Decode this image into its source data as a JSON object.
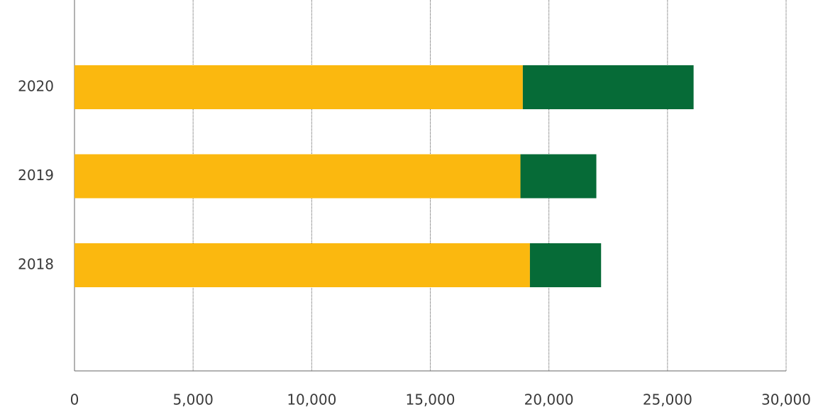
{
  "chart_data": {
    "type": "stacked-bar-horizontal",
    "categories": [
      "2018",
      "2019",
      "2020"
    ],
    "series": [
      {
        "color": "#fbb80f",
        "values": [
          19200,
          18800,
          18900
        ]
      },
      {
        "color": "#066b37",
        "values": [
          3000,
          3200,
          7200
        ]
      }
    ],
    "xlim": [
      0,
      30000
    ],
    "xticks": [
      0,
      {
        "value": 5000,
        "label": "5,000"
      },
      {
        "value": 10000,
        "label": "10,000"
      },
      {
        "value": 15000,
        "label": "15,000"
      },
      {
        "value": 20000,
        "label": "20,000"
      },
      {
        "value": 25000,
        "label": "25,000"
      },
      {
        "value": 30000,
        "label": "30,000"
      }
    ],
    "grid": true
  }
}
